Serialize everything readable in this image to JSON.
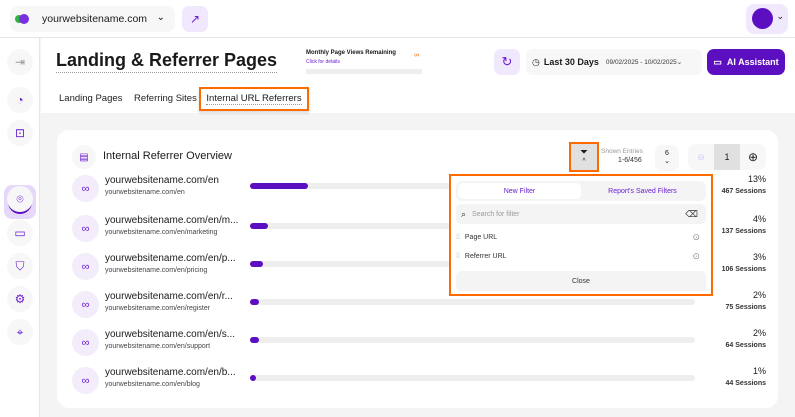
{
  "topbar": {
    "site": "yourwebsitename.com"
  },
  "page": {
    "title": "Landing & Referrer Pages",
    "quota_label": "Monthly Page Views Remaining",
    "quota_link": "Click for details",
    "quota_value": "∞"
  },
  "controls": {
    "range": "Last 30 Days",
    "dates": "09/02/2025 - 10/02/2025",
    "ai": "AI Assistant"
  },
  "tabs": [
    {
      "label": "Landing Pages"
    },
    {
      "label": "Referring Sites"
    },
    {
      "label": "Internal URL Referrers"
    }
  ],
  "card": {
    "title": "Internal Referrer Overview",
    "shown_label": "Shown Entries",
    "shown_value": "1-6/456",
    "per_page": "6",
    "page": "1"
  },
  "rows": [
    {
      "url": "yourwebsitename.com/en",
      "sub": "yourwebsitename.com/en",
      "pct": "13%",
      "share": 13,
      "sessions": "467 Sessions"
    },
    {
      "url": "yourwebsitename.com/en/m...",
      "sub": "yourwebsitename.com/en/marketing",
      "pct": "4%",
      "share": 4,
      "sessions": "137 Sessions"
    },
    {
      "url": "yourwebsitename.com/en/p...",
      "sub": "yourwebsitename.com/en/pricing",
      "pct": "3%",
      "share": 3,
      "sessions": "106 Sessions"
    },
    {
      "url": "yourwebsitename.com/en/r...",
      "sub": "yourwebsitename.com/en/register",
      "pct": "2%",
      "share": 2,
      "sessions": "75 Sessions"
    },
    {
      "url": "yourwebsitename.com/en/s...",
      "sub": "yourwebsitename.com/en/support",
      "pct": "2%",
      "share": 2,
      "sessions": "64 Sessions"
    },
    {
      "url": "yourwebsitename.com/en/b...",
      "sub": "yourwebsitename.com/en/blog",
      "pct": "1%",
      "share": 1,
      "sessions": "44 Sessions"
    }
  ],
  "filter": {
    "tab_new": "New Filter",
    "tab_saved": "Report's Saved Filters",
    "search_placeholder": "Search for filter",
    "items": [
      "Page URL",
      "Referrer URL"
    ],
    "close": "Close"
  },
  "colors": {
    "accent": "#5c0fc0",
    "highlight": "#ff6a00"
  }
}
